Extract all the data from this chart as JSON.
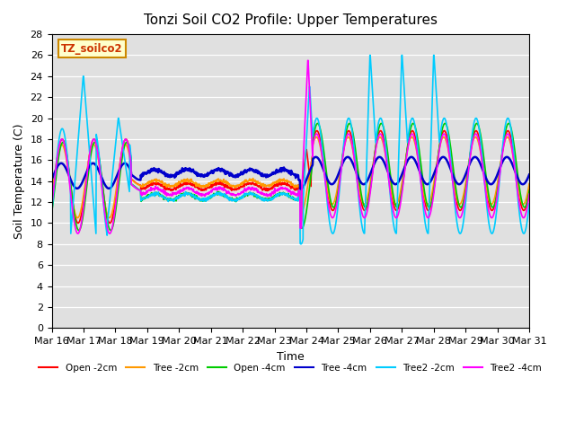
{
  "title": "Tonzi Soil CO2 Profile: Upper Temperatures",
  "xlabel": "Time",
  "ylabel": "Soil Temperature (C)",
  "ylim": [
    0,
    28
  ],
  "yticks": [
    0,
    2,
    4,
    6,
    8,
    10,
    12,
    14,
    16,
    18,
    20,
    22,
    24,
    26,
    28
  ],
  "xtick_labels": [
    "Mar 16",
    "Mar 17",
    "Mar 18",
    "Mar 19",
    "Mar 20",
    "Mar 21",
    "Mar 22",
    "Mar 23",
    "Mar 24",
    "Mar 25",
    "Mar 26",
    "Mar 27",
    "Mar 28",
    "Mar 29",
    "Mar 30",
    "Mar 31"
  ],
  "plot_bg_color": "#e0e0e0",
  "legend_label": "TZ_soilco2",
  "series": {
    "Open -2cm": {
      "color": "#ff0000",
      "lw": 1.2
    },
    "Tree -2cm": {
      "color": "#ff9900",
      "lw": 1.2
    },
    "Open -4cm": {
      "color": "#00cc00",
      "lw": 1.2
    },
    "Tree -4cm": {
      "color": "#0000cc",
      "lw": 1.8
    },
    "Tree2 -2cm": {
      "color": "#00ccff",
      "lw": 1.2
    },
    "Tree2 -4cm": {
      "color": "#ff00ff",
      "lw": 1.2
    }
  }
}
